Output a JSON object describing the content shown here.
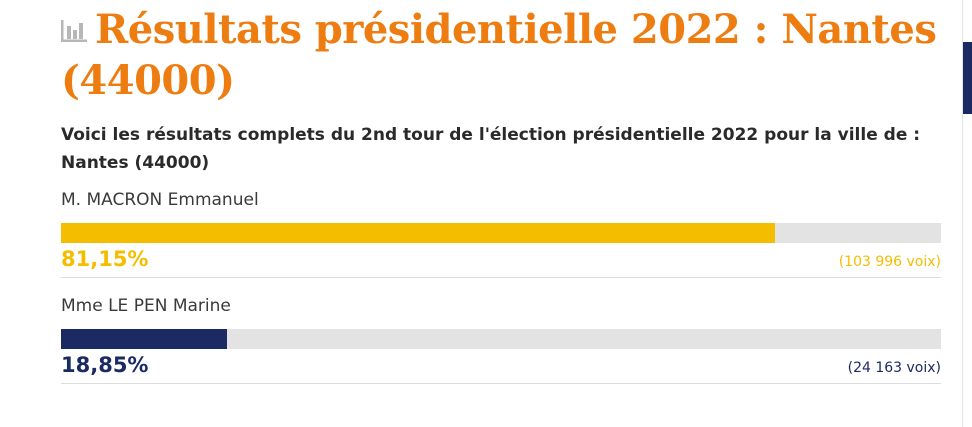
{
  "header": {
    "title": "Résultats présidentielle 2022 : Nantes (44000)",
    "icon": "bar-chart-icon"
  },
  "intro": "Voici les résultats complets du 2nd tour de l'élection présidentielle 2022 pour la ville de : Nantes (44000)",
  "candidates": [
    {
      "name": "M. MACRON Emmanuel",
      "percent_label": "81,15%",
      "percent": 81.15,
      "votes_label": "(103 996 voix)",
      "color": "#f5bd00"
    },
    {
      "name": "Mme LE PEN Marine",
      "percent_label": "18,85%",
      "percent": 18.85,
      "votes_label": "(24 163 voix)",
      "color": "#1b2a63"
    }
  ],
  "colors": {
    "title": "#ee7d11",
    "track": "#e3e3e3",
    "side_block": "#1b2a63"
  }
}
